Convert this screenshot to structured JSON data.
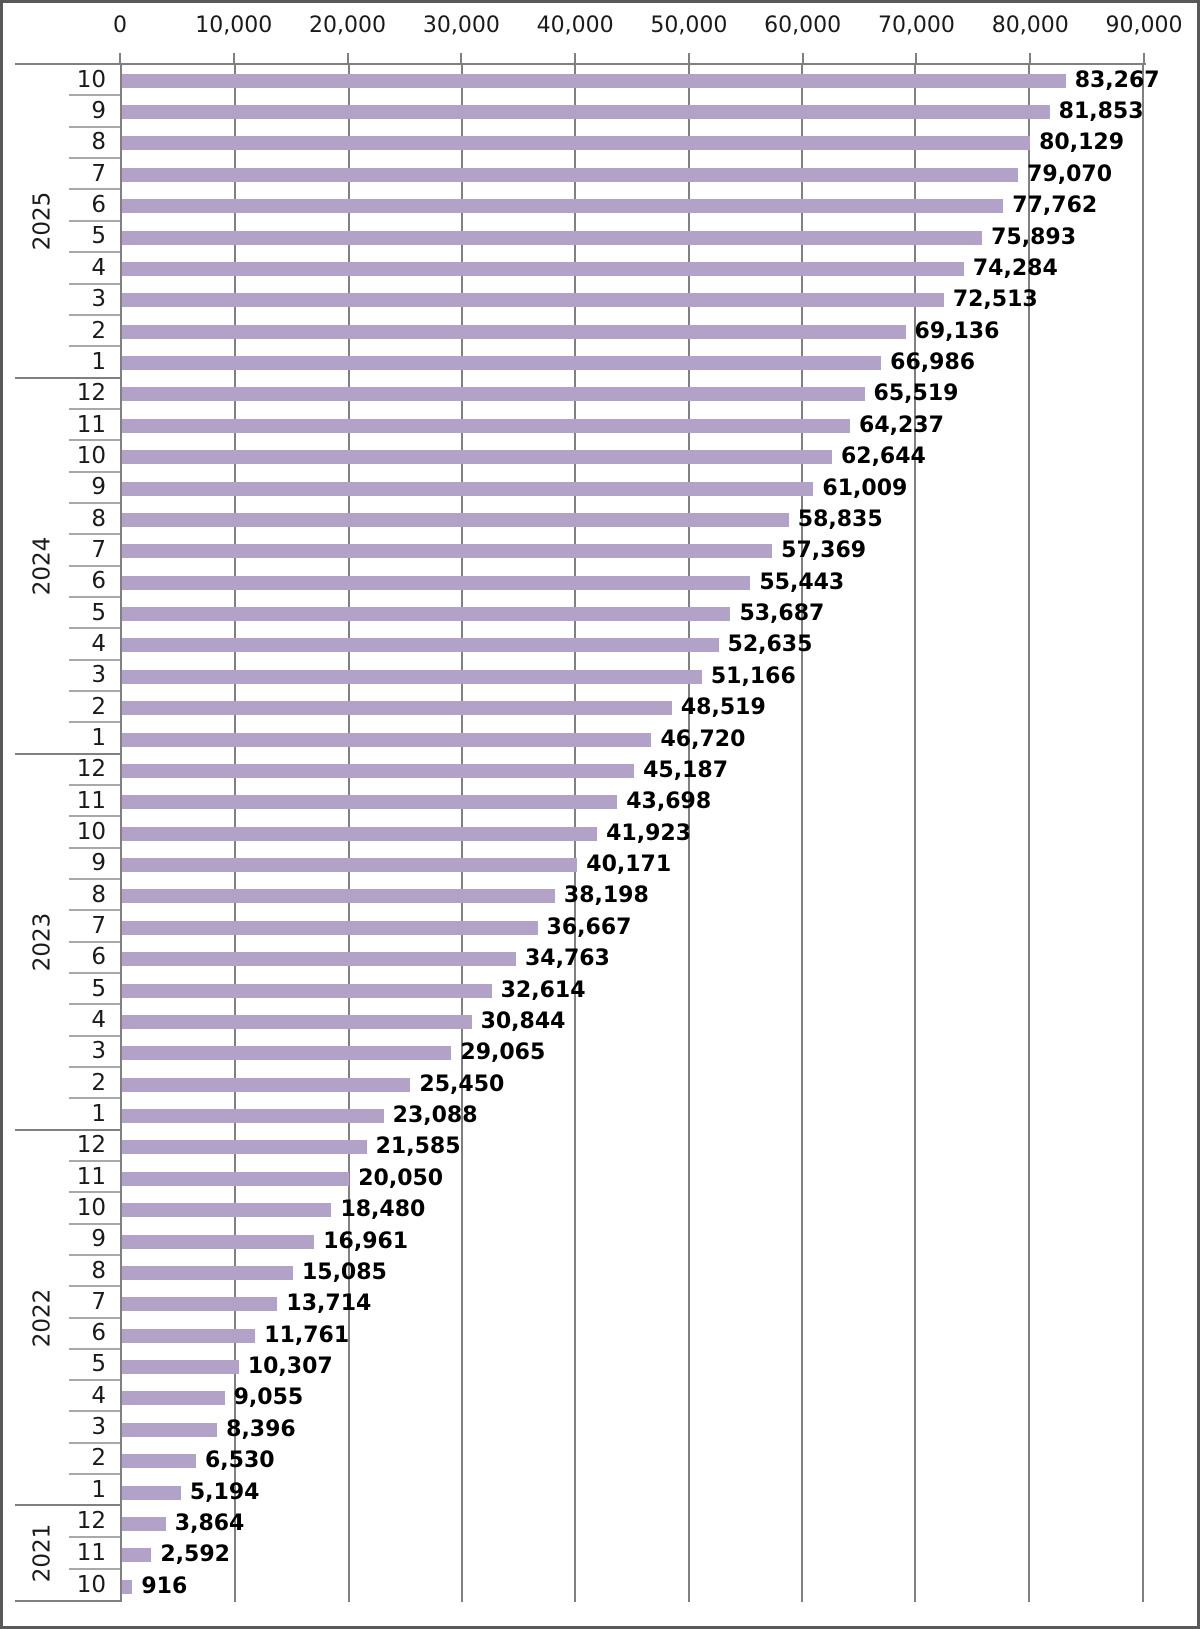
{
  "chart_data": {
    "type": "bar",
    "orientation": "horizontal",
    "title": "",
    "xlabel": "",
    "ylabel": "",
    "x_axis": {
      "position": "top",
      "min": 0,
      "max": 90000,
      "step": 10000,
      "tick_labels": [
        "0",
        "10,000",
        "20,000",
        "30,000",
        "40,000",
        "50,000",
        "60,000",
        "70,000",
        "80,000",
        "90,000"
      ]
    },
    "grid": "vertical-on",
    "legend": "none",
    "colors": {
      "bar_fill": "#b2a2c7",
      "gridline": "#808080",
      "axis_line": "#808080",
      "month_separator": "#a9a9a9",
      "year_separator": "#808080",
      "value_label": "#000000",
      "tick_label": "#1a1a1a",
      "outer_border": "#595959"
    },
    "groups": [
      {
        "year": "2021",
        "rows": [
          {
            "month": "10",
            "value": 916,
            "label": "916"
          },
          {
            "month": "11",
            "value": 2592,
            "label": "2,592"
          },
          {
            "month": "12",
            "value": 3864,
            "label": "3,864"
          }
        ]
      },
      {
        "year": "2022",
        "rows": [
          {
            "month": "1",
            "value": 5194,
            "label": "5,194"
          },
          {
            "month": "2",
            "value": 6530,
            "label": "6,530"
          },
          {
            "month": "3",
            "value": 8396,
            "label": "8,396"
          },
          {
            "month": "4",
            "value": 9055,
            "label": "9,055"
          },
          {
            "month": "5",
            "value": 10307,
            "label": "10,307"
          },
          {
            "month": "6",
            "value": 11761,
            "label": "11,761"
          },
          {
            "month": "7",
            "value": 13714,
            "label": "13,714"
          },
          {
            "month": "8",
            "value": 15085,
            "label": "15,085"
          },
          {
            "month": "9",
            "value": 16961,
            "label": "16,961"
          },
          {
            "month": "10",
            "value": 18480,
            "label": "18,480"
          },
          {
            "month": "11",
            "value": 20050,
            "label": "20,050"
          },
          {
            "month": "12",
            "value": 21585,
            "label": "21,585"
          }
        ]
      },
      {
        "year": "2023",
        "rows": [
          {
            "month": "1",
            "value": 23088,
            "label": "23,088"
          },
          {
            "month": "2",
            "value": 25450,
            "label": "25,450"
          },
          {
            "month": "3",
            "value": 29065,
            "label": "29,065"
          },
          {
            "month": "4",
            "value": 30844,
            "label": "30,844"
          },
          {
            "month": "5",
            "value": 32614,
            "label": "32,614"
          },
          {
            "month": "6",
            "value": 34763,
            "label": "34,763"
          },
          {
            "month": "7",
            "value": 36667,
            "label": "36,667"
          },
          {
            "month": "8",
            "value": 38198,
            "label": "38,198"
          },
          {
            "month": "9",
            "value": 40171,
            "label": "40,171"
          },
          {
            "month": "10",
            "value": 41923,
            "label": "41,923"
          },
          {
            "month": "11",
            "value": 43698,
            "label": "43,698"
          },
          {
            "month": "12",
            "value": 45187,
            "label": "45,187"
          }
        ]
      },
      {
        "year": "2024",
        "rows": [
          {
            "month": "1",
            "value": 46720,
            "label": "46,720"
          },
          {
            "month": "2",
            "value": 48519,
            "label": "48,519"
          },
          {
            "month": "3",
            "value": 51166,
            "label": "51,166"
          },
          {
            "month": "4",
            "value": 52635,
            "label": "52,635"
          },
          {
            "month": "5",
            "value": 53687,
            "label": "53,687"
          },
          {
            "month": "6",
            "value": 55443,
            "label": "55,443"
          },
          {
            "month": "7",
            "value": 57369,
            "label": "57,369"
          },
          {
            "month": "8",
            "value": 58835,
            "label": "58,835"
          },
          {
            "month": "9",
            "value": 61009,
            "label": "61,009"
          },
          {
            "month": "10",
            "value": 62644,
            "label": "62,644"
          },
          {
            "month": "11",
            "value": 64237,
            "label": "64,237"
          },
          {
            "month": "12",
            "value": 65519,
            "label": "65,519"
          }
        ]
      },
      {
        "year": "2025",
        "rows": [
          {
            "month": "1",
            "value": 66986,
            "label": "66,986"
          },
          {
            "month": "2",
            "value": 69136,
            "label": "69,136"
          },
          {
            "month": "3",
            "value": 72513,
            "label": "72,513"
          },
          {
            "month": "4",
            "value": 74284,
            "label": "74,284"
          },
          {
            "month": "5",
            "value": 75893,
            "label": "75,893"
          },
          {
            "month": "6",
            "value": 77762,
            "label": "77,762"
          },
          {
            "month": "7",
            "value": 79070,
            "label": "79,070"
          },
          {
            "month": "8",
            "value": 80129,
            "label": "80,129"
          },
          {
            "month": "9",
            "value": 81853,
            "label": "81,853"
          },
          {
            "month": "10",
            "value": 83267,
            "label": "83,267"
          }
        ]
      }
    ],
    "row_order": "newest-first-top"
  }
}
